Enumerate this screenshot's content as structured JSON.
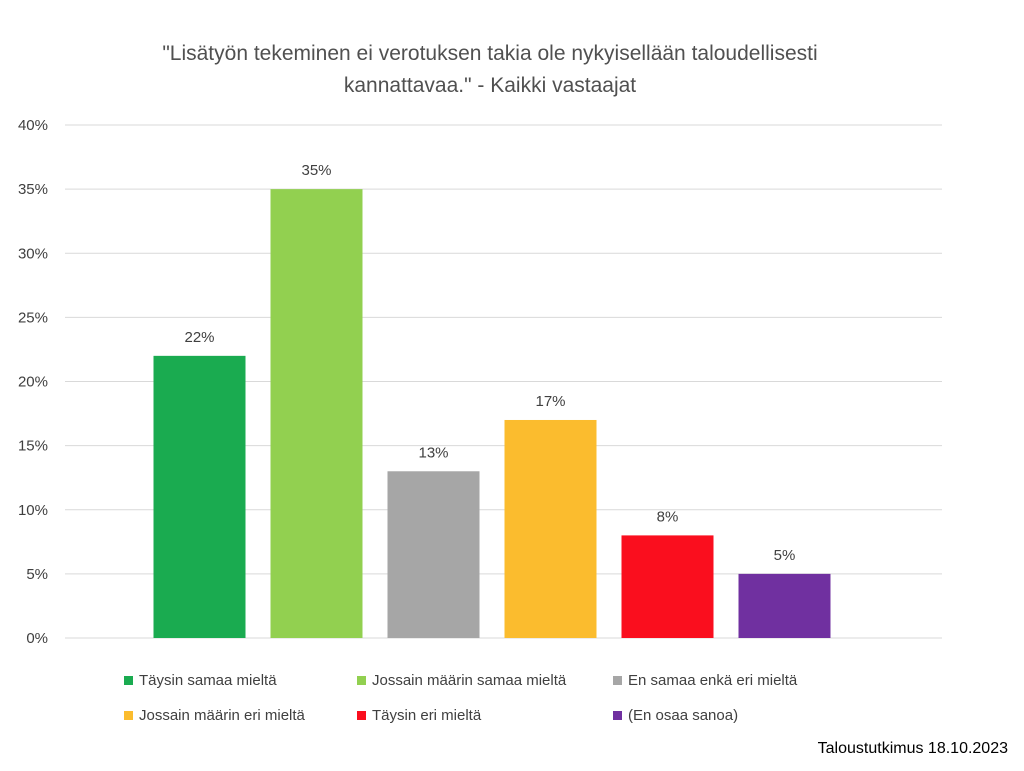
{
  "title_lines": [
    "\"Lisätyön tekeminen ei verotuksen takia ole nykyisellään taloudellisesti",
    "kannattavaa.\" - Kaikki vastaajat"
  ],
  "source_note": "Taloustutkimus 18.10.2023",
  "chart_data": {
    "type": "bar",
    "title": "\"Lisätyön tekeminen ei verotuksen takia ole nykyisellään taloudellisesti kannattavaa.\" - Kaikki vastaajat",
    "categories": [
      "Täysin samaa mieltä",
      "Jossain määrin samaa mieltä",
      "En samaa enkä eri mieltä",
      "Jossain määrin eri mieltä",
      "Täysin eri mieltä",
      "(En osaa sanoa)"
    ],
    "values": [
      22,
      35,
      13,
      17,
      8,
      5
    ],
    "value_labels": [
      "22%",
      "35%",
      "13%",
      "17%",
      "8%",
      "5%"
    ],
    "colors": [
      "#1aab50",
      "#92d050",
      "#a6a6a6",
      "#fbbc2e",
      "#fa0e1e",
      "#7030a0"
    ],
    "ylim": [
      0,
      40
    ],
    "yticks": [
      0,
      5,
      10,
      15,
      20,
      25,
      30,
      35,
      40
    ],
    "ytick_labels": [
      "0%",
      "5%",
      "10%",
      "15%",
      "20%",
      "25%",
      "30%",
      "35%",
      "40%"
    ],
    "grid": true,
    "legend_position": "bottom",
    "xlabel": "",
    "ylabel": ""
  }
}
